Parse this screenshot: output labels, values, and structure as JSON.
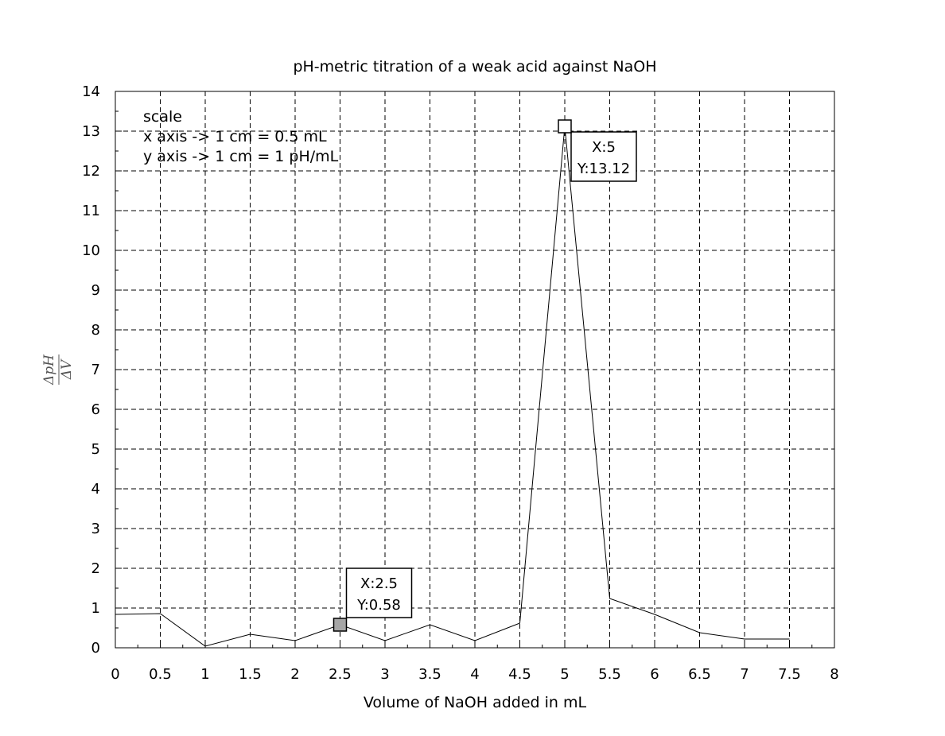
{
  "chart_data": {
    "type": "line",
    "title": "pH-metric titration of a weak acid against NaOH",
    "xlabel": "Volume of NaOH added in mL",
    "ylabel": {
      "numerator": "ΔpH",
      "denominator": "ΔV"
    },
    "xlim": [
      0,
      8
    ],
    "ylim": [
      0,
      14
    ],
    "xticks": [
      "0",
      "0.5",
      "1",
      "1.5",
      "2",
      "2.5",
      "3",
      "3.5",
      "4",
      "4.5",
      "5",
      "5.5",
      "6",
      "6.5",
      "7",
      "7.5",
      "8"
    ],
    "yticks": [
      "0",
      "1",
      "2",
      "3",
      "4",
      "5",
      "6",
      "7",
      "8",
      "9",
      "10",
      "11",
      "12",
      "13",
      "14"
    ],
    "grid": true,
    "series": [
      {
        "x": [
          0,
          0.5,
          1,
          1.5,
          2,
          2.5,
          3,
          3.5,
          4,
          4.5,
          5,
          5.5,
          6,
          6.5,
          7,
          7.5
        ],
        "y": [
          0.84,
          0.86,
          0.04,
          0.34,
          0.18,
          0.58,
          0.18,
          0.58,
          0.18,
          0.62,
          13.12,
          1.24,
          0.84,
          0.38,
          0.22,
          0.22
        ]
      }
    ],
    "annotations": {
      "lines": [
        "scale",
        "x axis -> 1 cm = 0.5 mL",
        "y axis -> 1 cm = 1 pH/mL"
      ]
    },
    "datatips": [
      {
        "x": 2.5,
        "y": 0.58,
        "x_text": "X:2.5",
        "y_text": "Y:0.58",
        "marker": "filled",
        "place": "above-right"
      },
      {
        "x": 5,
        "y": 13.12,
        "x_text": "X:5",
        "y_text": "Y:13.12",
        "marker": "hollow",
        "place": "below-right"
      }
    ]
  }
}
